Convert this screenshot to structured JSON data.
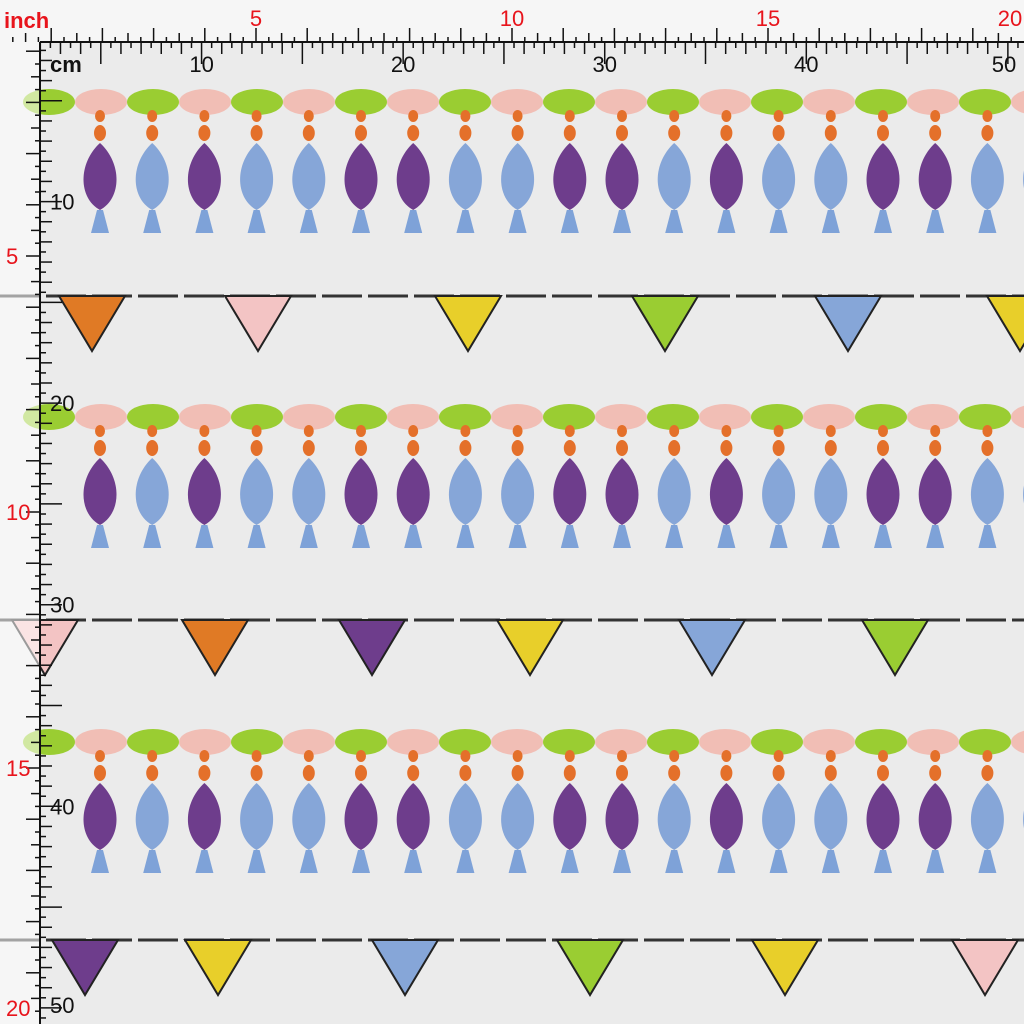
{
  "rulers": {
    "inch_label": "inch",
    "cm_label": "cm",
    "inch_top": [
      "5",
      "10",
      "15",
      "20"
    ],
    "cm_top": [
      "10",
      "20",
      "30",
      "40",
      "50"
    ],
    "inch_left": [
      "5",
      "10",
      "15",
      "20"
    ],
    "cm_left": [
      "10",
      "20",
      "30",
      "40",
      "50"
    ]
  }
}
